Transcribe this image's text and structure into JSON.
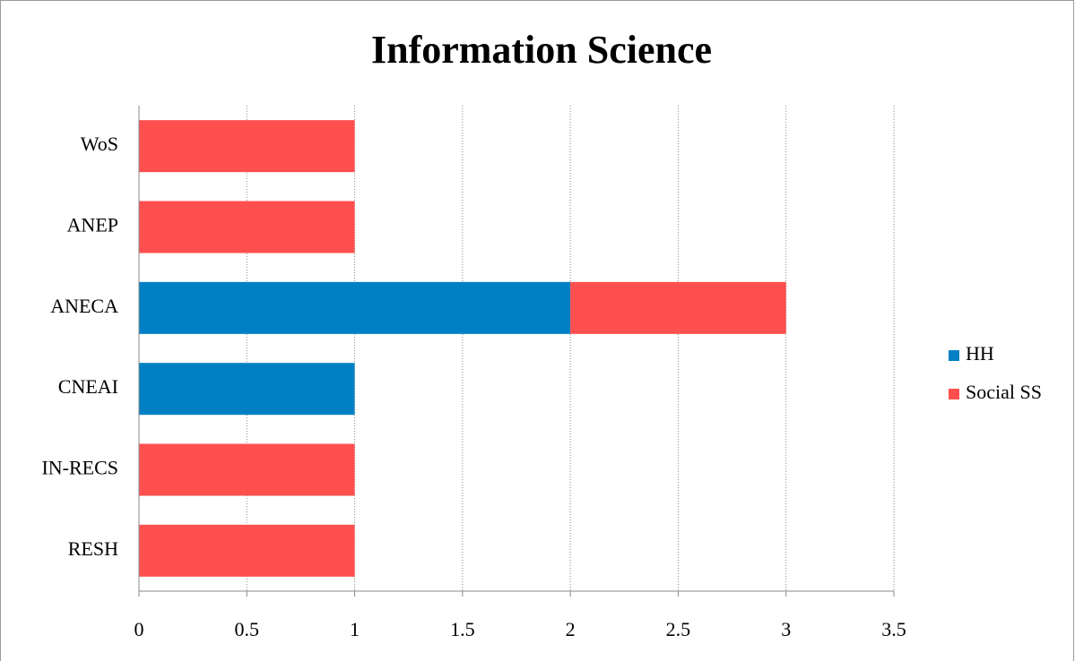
{
  "chart_data": {
    "type": "stacked-barh",
    "title": "Information Science",
    "categories": [
      "WoS",
      "ANEP",
      "ANECA",
      "CNEAI",
      "IN-RECS",
      "RESH"
    ],
    "series": [
      {
        "name": "HH",
        "color": "#0080c4",
        "values": [
          0,
          0,
          2,
          1,
          0,
          0
        ]
      },
      {
        "name": "Social SS",
        "color": "#ff4f4f",
        "values": [
          1,
          1,
          1,
          0,
          1,
          1
        ]
      }
    ],
    "xlim": [
      0,
      3.5
    ],
    "xticks": [
      0,
      0.5,
      1,
      1.5,
      2,
      2.5,
      3,
      3.5
    ],
    "grid": true,
    "legend": "right"
  }
}
